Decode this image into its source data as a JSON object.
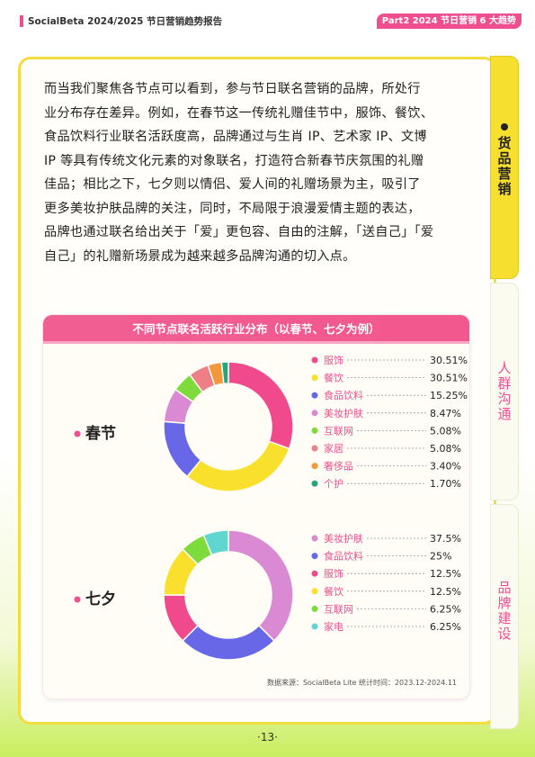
{
  "header": {
    "title": "SocialBeta 2024/2025 节日营销趋势报告",
    "tag": "Part2 2024 节日营销 6 大趋势"
  },
  "body_text": [
    "而当我们聚焦各节点可以看到，参与节日联名营销的品牌，所处行",
    "业分布存在差异。例如，在春节这一传统礼赠佳节中，服饰、餐饮、",
    "食品饮料行业联名活跃度高，品牌通过与生肖 IP、艺术家 IP、文博",
    "IP 等具有传统文化元素的对象联名，打造符合新春节庆氛围的礼赠",
    "佳品；相比之下，七夕则以情侣、爱人间的礼赠场景为主，吸引了",
    "更多美妆护肤品牌的关注，同时，不局限于浪漫爱情主题的表达，",
    "品牌也通过联名给出关于「爱」更包容、自由的注解，「送自己」「爱",
    "自己」的礼赠新场景成为越来越多品牌沟通的切入点。"
  ],
  "chart_data": [
    {
      "type": "pie",
      "title": "不同节点联名活跃行业分布（以春节、七夕为例）",
      "label": "春节",
      "slices": [
        {
          "name": "服饰",
          "value": 30.51,
          "display": "30.51%",
          "color": "#f04a8c"
        },
        {
          "name": "餐饮",
          "value": 30.51,
          "display": "30.51%",
          "color": "#f8e02c"
        },
        {
          "name": "食品饮料",
          "value": 15.25,
          "display": "15.25%",
          "color": "#6767e8"
        },
        {
          "name": "美妆护肤",
          "value": 8.47,
          "display": "8.47%",
          "color": "#d98ad3"
        },
        {
          "name": "互联网",
          "value": 5.08,
          "display": "5.08%",
          "color": "#7edb3c"
        },
        {
          "name": "家居",
          "value": 5.08,
          "display": "5.08%",
          "color": "#ef7f86"
        },
        {
          "name": "奢侈品",
          "value": 3.4,
          "display": "3.40%",
          "color": "#f2973a"
        },
        {
          "name": "个护",
          "value": 1.7,
          "display": "1.70%",
          "color": "#2aa47a"
        }
      ]
    },
    {
      "type": "pie",
      "label": "七夕",
      "slices": [
        {
          "name": "美妆护肤",
          "value": 37.5,
          "display": "37.5%",
          "color": "#d98ad3"
        },
        {
          "name": "食品饮料",
          "value": 25,
          "display": "25%",
          "color": "#6767e8"
        },
        {
          "name": "服饰",
          "value": 12.5,
          "display": "12.5%",
          "color": "#f04a8c"
        },
        {
          "name": "餐饮",
          "value": 12.5,
          "display": "12.5%",
          "color": "#f8e02c"
        },
        {
          "name": "互联网",
          "value": 6.25,
          "display": "6.25%",
          "color": "#7edb3c"
        },
        {
          "name": "家电",
          "value": 6.25,
          "display": "6.25%",
          "color": "#5fd6cf"
        }
      ]
    }
  ],
  "source": "数据来源：SocialBeta Lite 统计时间：2023.12-2024.11",
  "side_tabs": [
    {
      "label": "货品营销",
      "active": true
    },
    {
      "label": "人群沟通",
      "active": false
    },
    {
      "label": "品牌建设",
      "active": false
    }
  ],
  "page_number": "·13·",
  "colors": {
    "accent": "#ef4f8f",
    "tab_active": "#f7df2f",
    "card_border": "#f2dc3e"
  }
}
